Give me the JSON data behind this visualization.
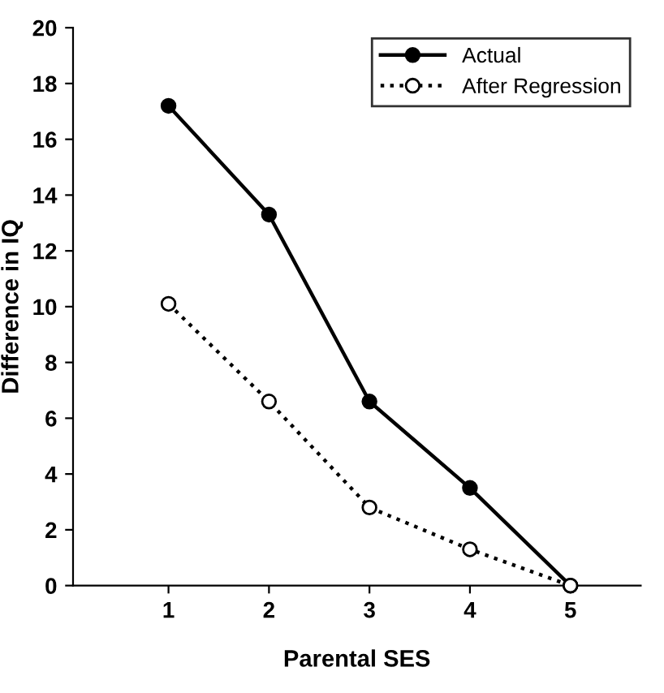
{
  "chart_data": {
    "type": "line",
    "xlabel": "Parental SES",
    "ylabel": "Difference in IQ",
    "x": [
      1,
      2,
      3,
      4,
      5
    ],
    "series": [
      {
        "name": "Actual",
        "color": "#000000",
        "values": [
          17.2,
          13.3,
          6.6,
          3.5,
          0
        ],
        "marker": "circle",
        "line_style": "solid"
      },
      {
        "name": "After Regression",
        "color": "#000000",
        "values": [
          10.1,
          6.6,
          2.8,
          1.3,
          0
        ],
        "marker": "circle",
        "line_style": "dotted"
      }
    ],
    "xlim": [
      0.05,
      5.7
    ],
    "xticks": [
      1,
      2,
      3,
      4,
      5
    ],
    "ylim": [
      0,
      20
    ],
    "yticks": [
      0,
      2,
      4,
      6,
      8,
      10,
      12,
      14,
      16,
      18,
      20
    ],
    "grid": false,
    "legend": "top right"
  }
}
